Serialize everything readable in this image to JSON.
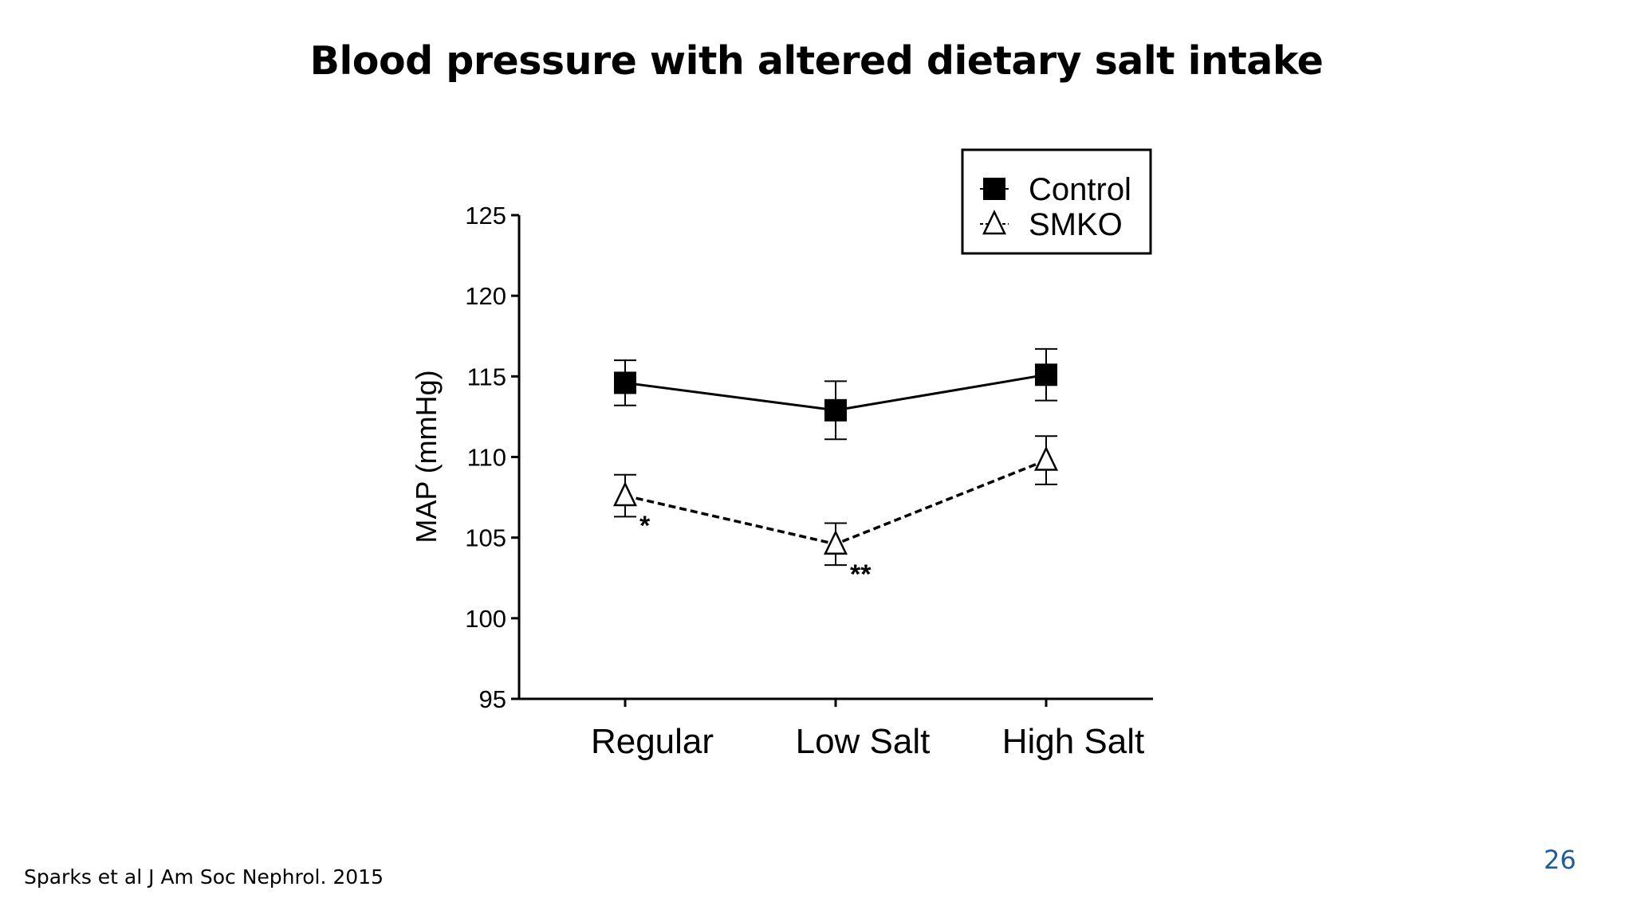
{
  "slide": {
    "title": "Blood pressure with altered dietary salt intake",
    "citation": "Sparks et al J Am Soc Nephrol. 2015",
    "page_number": "26"
  },
  "chart_data": {
    "type": "line",
    "title": "Blood pressure with altered dietary salt intake",
    "xlabel": "",
    "ylabel": "MAP (mmHg)",
    "categories": [
      "Regular",
      "Low Salt",
      "High Salt"
    ],
    "ylim": [
      95,
      125
    ],
    "yticks": [
      95,
      100,
      105,
      110,
      115,
      120,
      125
    ],
    "grid": false,
    "legend_position": "top-right",
    "series": [
      {
        "name": "Control",
        "marker": "filled-square",
        "line_style": "solid",
        "color": "#000000",
        "values": [
          114.6,
          112.9,
          115.1
        ],
        "error": [
          1.4,
          1.8,
          1.6
        ]
      },
      {
        "name": "SMKO",
        "marker": "open-triangle",
        "line_style": "dashed",
        "color": "#000000",
        "values": [
          107.6,
          104.6,
          109.8
        ],
        "error": [
          1.3,
          1.3,
          1.5
        ]
      }
    ],
    "annotations": [
      {
        "series": "SMKO",
        "category": "Regular",
        "text": "*"
      },
      {
        "series": "SMKO",
        "category": "Low Salt",
        "text": "**"
      }
    ]
  }
}
